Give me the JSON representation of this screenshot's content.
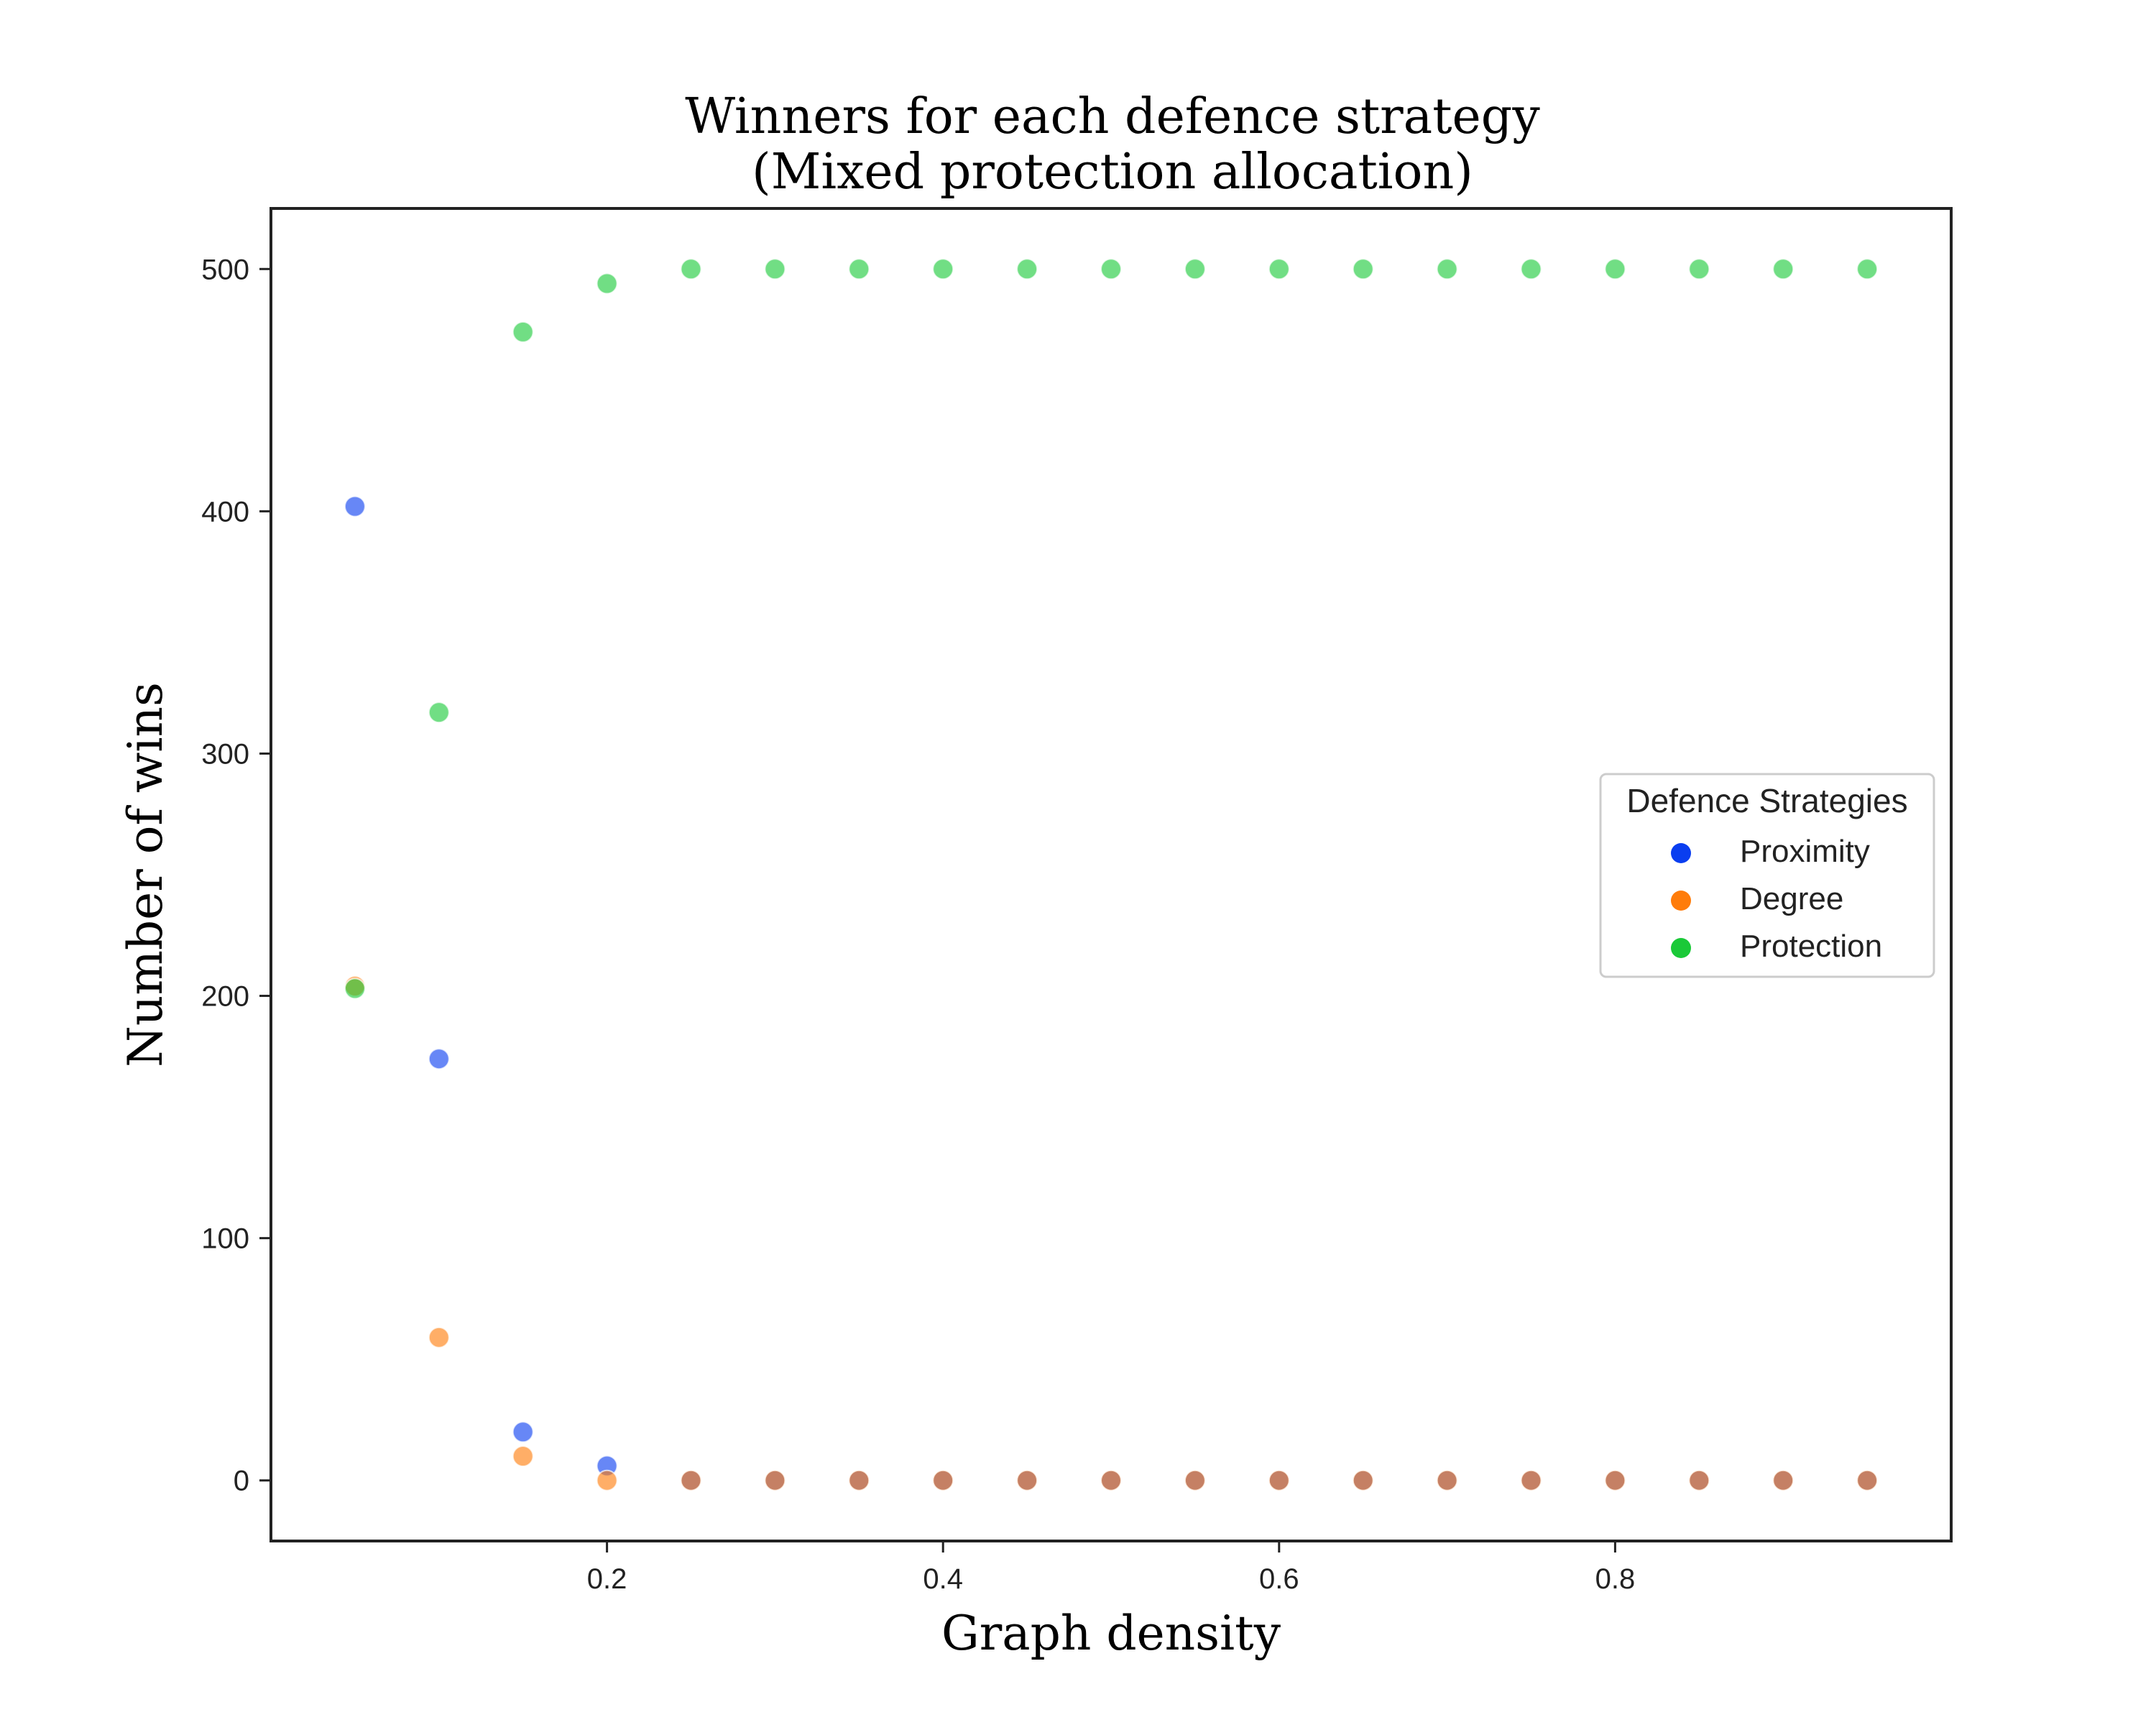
{
  "chart_data": {
    "type": "scatter",
    "title_line1": "Winners for each defence strategy",
    "title_line2": "(Mixed protection allocation)",
    "xlabel": "Graph density",
    "ylabel": "Number of wins",
    "xlim": [
      0.0,
      1.0
    ],
    "ylim": [
      -25,
      525
    ],
    "xticks": [
      0.2,
      0.4,
      0.6,
      0.8
    ],
    "xtick_labels": [
      "0.2",
      "0.4",
      "0.6",
      "0.8"
    ],
    "yticks": [
      0,
      100,
      200,
      300,
      400,
      500
    ],
    "ytick_labels": [
      "0",
      "100",
      "200",
      "300",
      "400",
      "500"
    ],
    "grid": false,
    "legend": {
      "title": "Defence Strategies",
      "placement": "center-right"
    },
    "x": [
      0.05,
      0.1,
      0.15,
      0.2,
      0.25,
      0.3,
      0.35,
      0.4,
      0.45,
      0.5,
      0.55,
      0.6,
      0.65,
      0.7,
      0.75,
      0.8,
      0.85,
      0.9,
      0.95
    ],
    "series": [
      {
        "name": "Proximity",
        "color": "#0a3ef0",
        "values": [
          402,
          174,
          20,
          6,
          0,
          0,
          0,
          0,
          0,
          0,
          0,
          0,
          0,
          0,
          0,
          0,
          0,
          0,
          0
        ]
      },
      {
        "name": "Degree",
        "color": "#ff7c0a",
        "values": [
          204,
          59,
          10,
          0,
          0,
          0,
          0,
          0,
          0,
          0,
          0,
          0,
          0,
          0,
          0,
          0,
          0,
          0,
          0
        ]
      },
      {
        "name": "Protection",
        "color": "#1ac938",
        "values": [
          203,
          317,
          474,
          494,
          500,
          500,
          500,
          500,
          500,
          500,
          500,
          500,
          500,
          500,
          500,
          500,
          500,
          500,
          500
        ]
      }
    ],
    "overlap_color": "#8c5f5f"
  }
}
